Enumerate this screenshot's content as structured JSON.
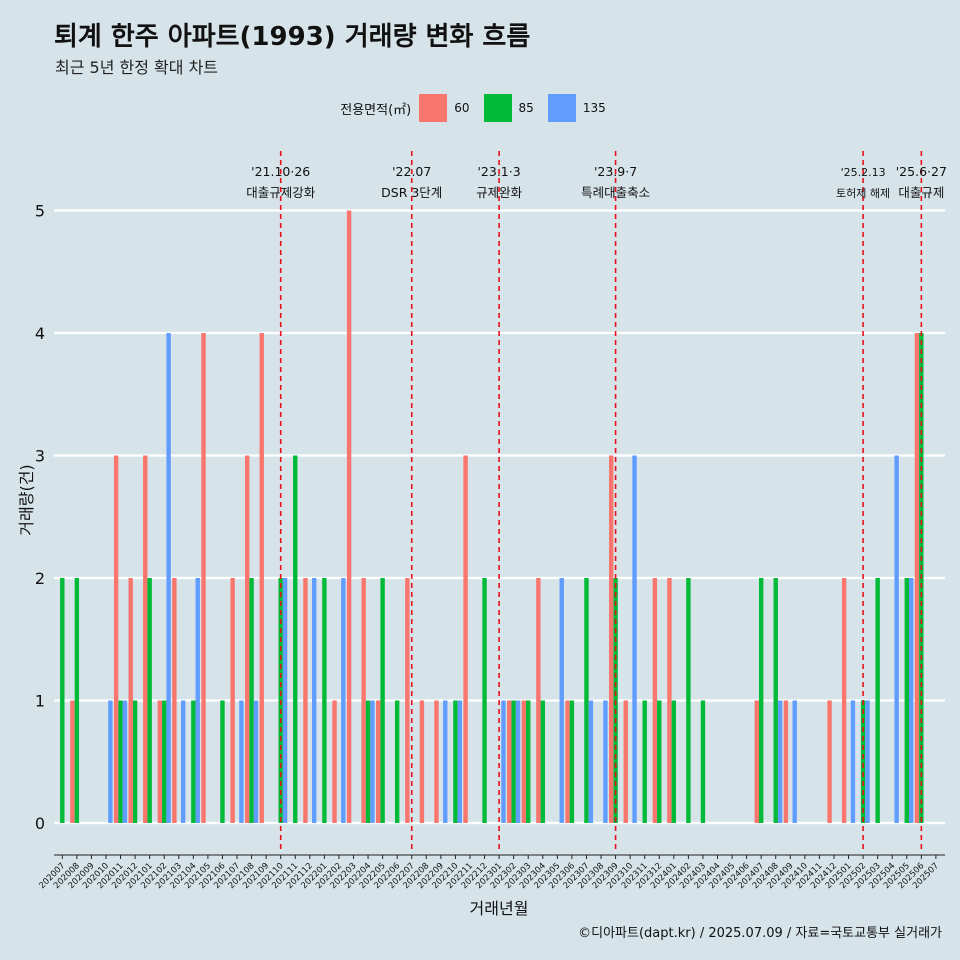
{
  "header": {
    "title": "퇴계 한주 아파트(1993) 거래량 변화 흐름",
    "subtitle": "최근 5년 한정 확대 차트"
  },
  "legend": {
    "title": "전용면적(㎡)",
    "items": [
      {
        "label": "60",
        "color": "#f8766d"
      },
      {
        "label": "85",
        "color": "#00ba38"
      },
      {
        "label": "135",
        "color": "#619cff"
      }
    ]
  },
  "caption": "©디아파트(dapt.kr) / 2025.07.09 / 자료=국토교통부 실거래가",
  "chart_data": {
    "type": "bar",
    "xlabel": "거래년월",
    "ylabel": "거래량(건)",
    "ylim": [
      0,
      5
    ],
    "y_ticks": [
      0,
      1,
      2,
      3,
      4,
      5
    ],
    "grid": true,
    "legend_position": "top",
    "categories": [
      "202007",
      "202008",
      "202009",
      "202010",
      "202011",
      "202012",
      "202101",
      "202102",
      "202103",
      "202104",
      "202105",
      "202106",
      "202107",
      "202108",
      "202109",
      "202110",
      "202111",
      "202112",
      "202201",
      "202202",
      "202203",
      "202204",
      "202205",
      "202206",
      "202207",
      "202208",
      "202209",
      "202210",
      "202211",
      "202212",
      "202301",
      "202302",
      "202303",
      "202304",
      "202305",
      "202306",
      "202307",
      "202308",
      "202309",
      "202310",
      "202311",
      "202312",
      "202401",
      "202402",
      "202403",
      "202404",
      "202405",
      "202406",
      "202407",
      "202408",
      "202409",
      "202410",
      "202411",
      "202412",
      "202501",
      "202502",
      "202503",
      "202504",
      "202505",
      "202506",
      "202507"
    ],
    "series": [
      {
        "name": "60",
        "color": "#f8766d",
        "values": [
          0,
          1,
          0,
          0,
          3,
          2,
          3,
          1,
          2,
          0,
          4,
          0,
          2,
          3,
          4,
          0,
          0,
          2,
          0,
          1,
          5,
          2,
          1,
          0,
          2,
          1,
          1,
          0,
          3,
          0,
          0,
          1,
          1,
          2,
          0,
          1,
          0,
          0,
          3,
          1,
          0,
          2,
          2,
          0,
          0,
          0,
          0,
          0,
          1,
          0,
          1,
          0,
          0,
          1,
          2,
          0,
          0,
          0,
          0,
          4,
          0
        ]
      },
      {
        "name": "85",
        "color": "#00ba38",
        "values": [
          2,
          2,
          0,
          0,
          1,
          1,
          2,
          1,
          0,
          1,
          0,
          1,
          0,
          2,
          0,
          2,
          3,
          0,
          2,
          0,
          0,
          1,
          2,
          1,
          0,
          0,
          0,
          1,
          0,
          2,
          0,
          1,
          1,
          1,
          0,
          1,
          2,
          0,
          2,
          0,
          1,
          1,
          1,
          2,
          1,
          0,
          0,
          0,
          2,
          2,
          0,
          0,
          0,
          0,
          0,
          1,
          2,
          0,
          2,
          4,
          0
        ]
      },
      {
        "name": "135",
        "color": "#619cff",
        "values": [
          0,
          0,
          0,
          1,
          1,
          0,
          0,
          4,
          1,
          2,
          0,
          0,
          1,
          1,
          0,
          2,
          0,
          2,
          0,
          2,
          0,
          1,
          0,
          0,
          0,
          0,
          1,
          1,
          0,
          0,
          1,
          1,
          0,
          0,
          2,
          0,
          1,
          1,
          0,
          3,
          0,
          0,
          0,
          0,
          0,
          0,
          0,
          0,
          0,
          1,
          1,
          0,
          0,
          0,
          1,
          1,
          0,
          3,
          2,
          0,
          0
        ]
      }
    ],
    "annotations": [
      {
        "x": "202110",
        "date": "'21.10·26",
        "label": "대출규제강화"
      },
      {
        "x": "202207",
        "date": "'22.07",
        "label": "DSR 3단계"
      },
      {
        "x": "202301",
        "date": "'23.1·3",
        "label": "규제완화"
      },
      {
        "x": "202309",
        "date": "'23.9·7",
        "label": "특례대출축소"
      },
      {
        "x": "202502",
        "date": "'25.2.13",
        "label": "토허제 해제"
      },
      {
        "x": "202506",
        "date": "'25.6·27",
        "label": "대출규제"
      }
    ]
  }
}
